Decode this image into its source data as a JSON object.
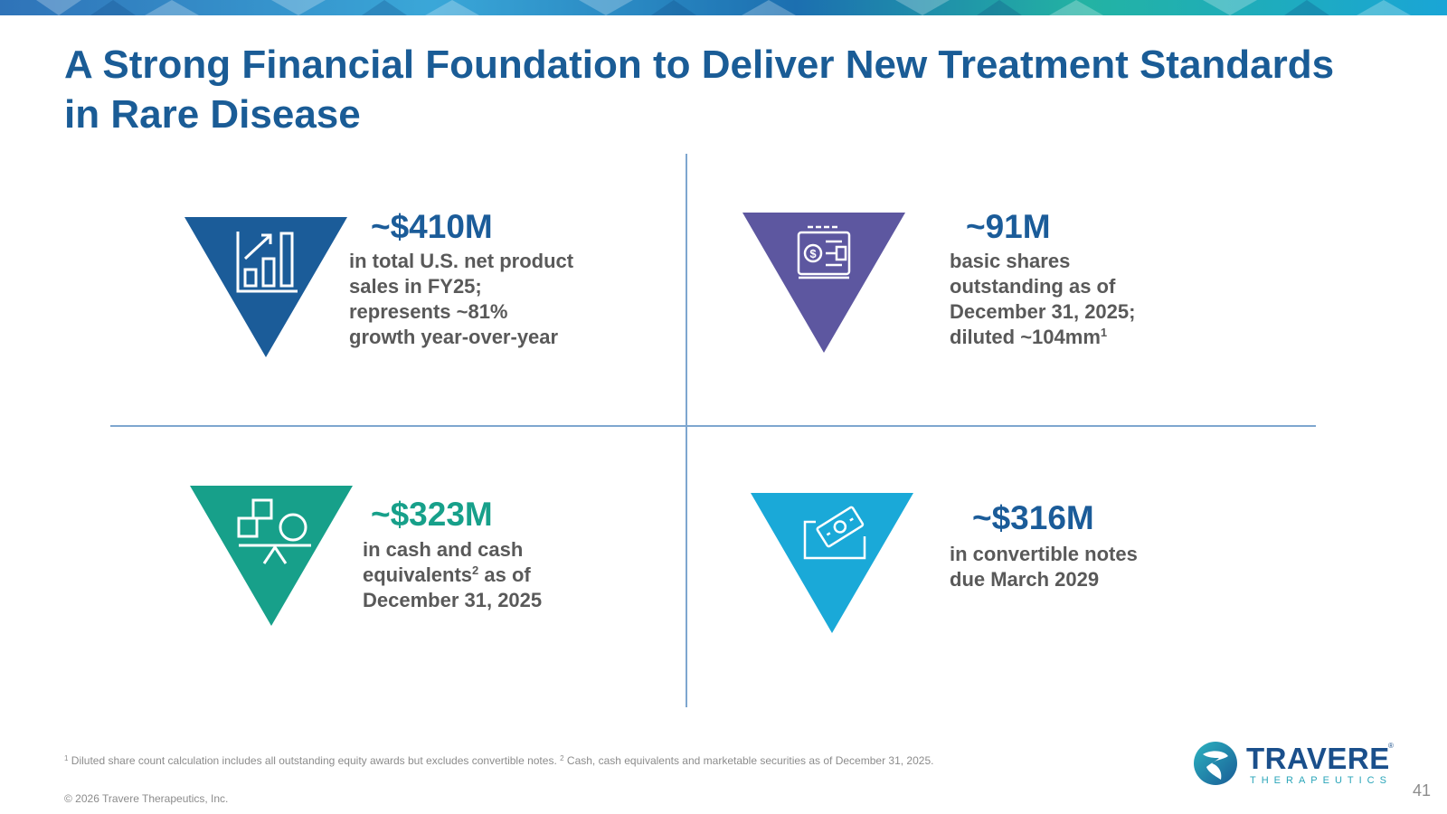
{
  "title": {
    "line1": "A Strong Financial Foundation to Deliver New Treatment Standards",
    "line2": "in Rare Disease",
    "color": "#1a5c96"
  },
  "colors": {
    "divider": "#7ea6cf",
    "text_gray": "#595959",
    "footer_gray": "#8c8c8c"
  },
  "metrics": [
    {
      "value": "~$410M",
      "lines": [
        "in total U.S. net product",
        "sales in FY25;",
        "represents ~81%",
        "growth year-over-year"
      ],
      "color": "#1b5c99",
      "icon": "growth-chart-icon"
    },
    {
      "value": "~91M",
      "lines": [
        "basic shares",
        "outstanding as of",
        "December 31, 2025;"
      ],
      "last_line": "diluted ~104mm",
      "last_line_sup": "1",
      "color": "#1b5c99",
      "triangle_color": "#5d57a0",
      "icon": "stock-certificate-icon"
    },
    {
      "value": "~$323M",
      "lines_1": "in cash and cash",
      "line_2_main": "equivalents",
      "line_2_sup": "2",
      "line_2_rest": " as of",
      "line_3": "December 31, 2025",
      "color": "#17a08a",
      "icon": "balance-shapes-icon"
    },
    {
      "value": "~$316M",
      "lines": [
        "in convertible notes",
        "due March 2029"
      ],
      "color": "#1b5c99",
      "triangle_color": "#1aa9d8",
      "icon": "money-notes-icon"
    }
  ],
  "footnote": {
    "sup1": "1",
    "text1": " Diluted share count calculation includes all outstanding equity awards but excludes convertible notes. ",
    "sup2": "2",
    "text2": " Cash, cash equivalents and marketable securities as of December 31, 2025."
  },
  "copyright": "© 2026 Travere Therapeutics, Inc.",
  "logo": {
    "name": "TRAVERE",
    "registered": "®",
    "sub": "THERAPEUTICS"
  },
  "page_number": "41"
}
